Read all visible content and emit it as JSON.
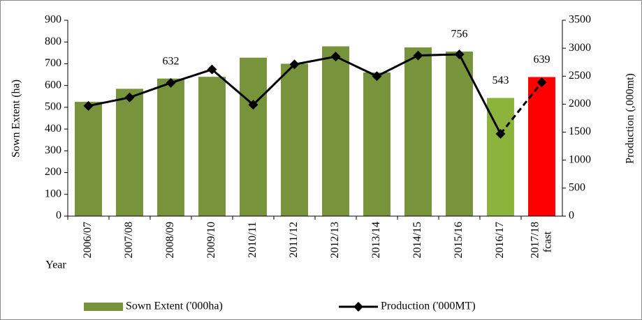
{
  "chart_data": {
    "type": "bar_line",
    "categories": [
      "2006/07",
      "2007/08",
      "2008/09",
      "2009/10",
      "2010/11",
      "2011/12",
      "2012/13",
      "2013/14",
      "2014/15",
      "2015/16",
      "2016/17",
      "2017/18 fcast"
    ],
    "x_label": "Year",
    "y_label": "Sown Extent (ha)",
    "y2_label": "Production  (,000mt)",
    "ylim": [
      0,
      900
    ],
    "yticks": [
      0,
      100,
      200,
      300,
      400,
      500,
      600,
      700,
      800,
      900
    ],
    "y2lim": [
      0,
      3500
    ],
    "y2ticks": [
      0,
      500,
      1000,
      1500,
      2000,
      2500,
      3000,
      3500
    ],
    "series": [
      {
        "name": "Sown Extent ('000ha)",
        "kind": "bar",
        "color": "#77933c",
        "colors": [
          "#77933c",
          "#77933c",
          "#77933c",
          "#77933c",
          "#77933c",
          "#77933c",
          "#77933c",
          "#77933c",
          "#77933c",
          "#77933c",
          "#8cb43d",
          "#ff0000"
        ],
        "values": [
          525,
          585,
          632,
          640,
          728,
          700,
          780,
          660,
          775,
          756,
          543,
          639
        ],
        "value_labels": [
          null,
          null,
          "632",
          null,
          null,
          null,
          null,
          null,
          null,
          "756",
          "543",
          "639"
        ]
      },
      {
        "name": "Production ('000MT)",
        "kind": "line",
        "axis": "y2",
        "color": "#000000",
        "dashed_from": 10,
        "values": [
          1970,
          2120,
          2380,
          2620,
          1990,
          2710,
          2850,
          2500,
          2870,
          2890,
          1470,
          2390
        ]
      }
    ]
  }
}
